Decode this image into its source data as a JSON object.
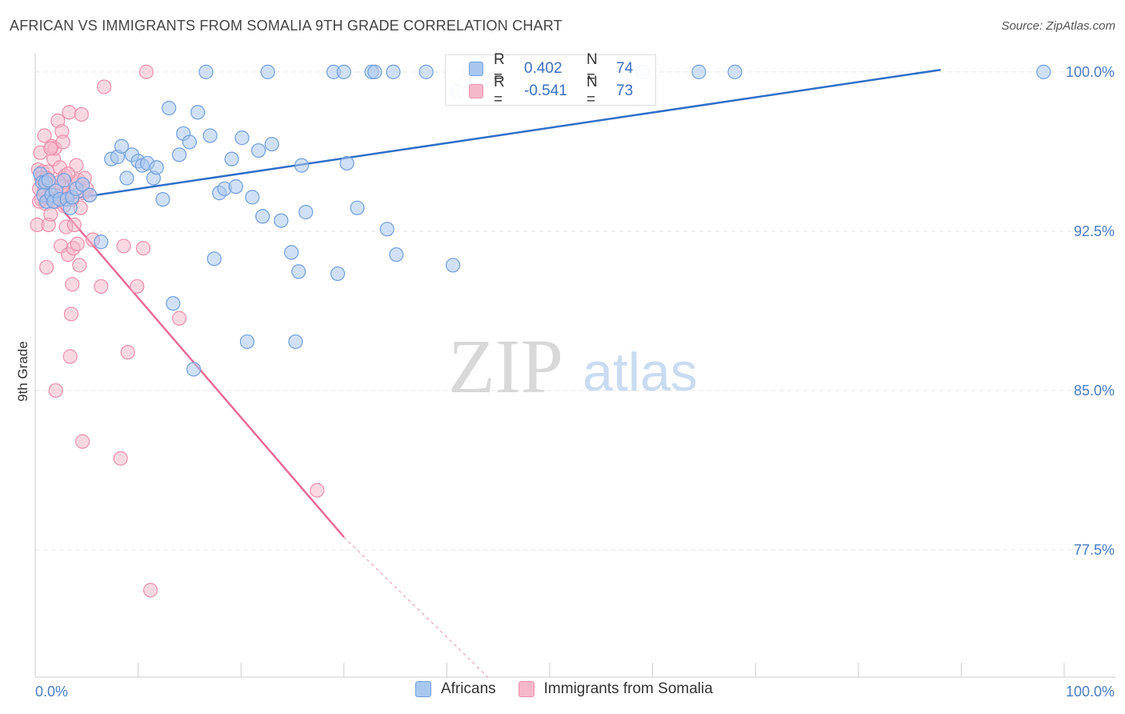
{
  "title": "AFRICAN VS IMMIGRANTS FROM SOMALIA 9TH GRADE CORRELATION CHART",
  "source": "Source: ZipAtlas.com",
  "watermark": {
    "zip": "ZIP",
    "atlas": "atlas"
  },
  "colors": {
    "africans_fill": "#a9c7ee",
    "africans_stroke": "#6f9fdc",
    "africans_line": "#2f6fc9",
    "somalia_fill": "#f5b8cb",
    "somalia_stroke": "#ec8fab",
    "somalia_line": "#e86a97",
    "tick_label": "#4a7cc2"
  },
  "stats": {
    "africans": {
      "r_label": "R =",
      "r_value": "0.402",
      "n_label": "N =",
      "n_value": "74"
    },
    "somalia": {
      "r_label": "R =",
      "r_value": "-0.541",
      "n_label": "N =",
      "n_value": "73"
    }
  },
  "legend": {
    "africans": "Africans",
    "somalia": "Immigrants from Somalia"
  },
  "chart_data": {
    "type": "scatter",
    "title": "AFRICAN VS IMMIGRANTS FROM SOMALIA 9TH GRADE CORRELATION CHART",
    "xlabel": "",
    "ylabel": "9th Grade",
    "xlim": [
      0,
      100
    ],
    "ylim": [
      71.5,
      100.9
    ],
    "x_tick_labels": [
      "0.0%",
      "100.0%"
    ],
    "y_ticks": [
      100.0,
      92.5,
      85.0,
      77.5
    ],
    "y_tick_labels": [
      "100.0%",
      "92.5%",
      "85.0%",
      "77.5%"
    ],
    "grid": true,
    "legend_position": "bottom-center",
    "series": [
      {
        "name": "Africans",
        "trend": {
          "x": [
            0.3,
            88.0
          ],
          "y": [
            93.8,
            100.1
          ]
        },
        "points": [
          [
            0.5,
            95.2
          ],
          [
            0.7,
            94.8
          ],
          [
            0.8,
            94.2
          ],
          [
            1.0,
            94.8
          ],
          [
            1.1,
            93.9
          ],
          [
            1.3,
            94.9
          ],
          [
            1.6,
            94.2
          ],
          [
            1.8,
            93.9
          ],
          [
            2.0,
            94.4
          ],
          [
            2.4,
            94.0
          ],
          [
            2.8,
            94.9
          ],
          [
            3.1,
            94.0
          ],
          [
            3.4,
            93.6
          ],
          [
            3.6,
            94.1
          ],
          [
            4.0,
            94.5
          ],
          [
            4.6,
            94.7
          ],
          [
            5.3,
            94.2
          ],
          [
            6.4,
            92.0
          ],
          [
            7.4,
            95.9
          ],
          [
            8.0,
            96.0
          ],
          [
            8.4,
            96.5
          ],
          [
            8.9,
            95.0
          ],
          [
            9.4,
            96.1
          ],
          [
            10.0,
            95.8
          ],
          [
            10.4,
            95.6
          ],
          [
            10.9,
            95.7
          ],
          [
            11.5,
            95.0
          ],
          [
            11.8,
            95.5
          ],
          [
            12.4,
            94.0
          ],
          [
            13.0,
            98.3
          ],
          [
            13.4,
            89.1
          ],
          [
            14.0,
            96.1
          ],
          [
            14.4,
            97.1
          ],
          [
            15.0,
            96.7
          ],
          [
            15.4,
            86.0
          ],
          [
            15.8,
            98.1
          ],
          [
            16.6,
            100.0
          ],
          [
            17.0,
            97.0
          ],
          [
            17.4,
            91.2
          ],
          [
            17.9,
            94.3
          ],
          [
            18.4,
            94.5
          ],
          [
            19.1,
            95.9
          ],
          [
            19.5,
            94.6
          ],
          [
            20.1,
            96.9
          ],
          [
            20.6,
            87.3
          ],
          [
            21.1,
            94.1
          ],
          [
            21.7,
            96.3
          ],
          [
            22.1,
            93.2
          ],
          [
            22.6,
            100.0
          ],
          [
            23.0,
            96.6
          ],
          [
            23.9,
            93.0
          ],
          [
            24.9,
            91.5
          ],
          [
            25.3,
            87.3
          ],
          [
            25.6,
            90.6
          ],
          [
            25.9,
            95.6
          ],
          [
            26.3,
            93.4
          ],
          [
            29.0,
            100.0
          ],
          [
            29.4,
            90.5
          ],
          [
            30.0,
            100.0
          ],
          [
            30.3,
            95.7
          ],
          [
            31.3,
            93.6
          ],
          [
            32.7,
            100.0
          ],
          [
            33.0,
            100.0
          ],
          [
            34.2,
            92.6
          ],
          [
            34.8,
            100.0
          ],
          [
            35.1,
            91.4
          ],
          [
            38.0,
            100.0
          ],
          [
            40.6,
            90.9
          ],
          [
            41.0,
            99.1
          ],
          [
            42.3,
            100.0
          ],
          [
            59.0,
            100.0
          ],
          [
            64.5,
            100.0
          ],
          [
            68.0,
            100.0
          ],
          [
            98.0,
            100.0
          ]
        ]
      },
      {
        "name": "Immigrants from Somalia",
        "trend": {
          "x": [
            0.0,
            30.0
          ],
          "y": [
            95.0,
            78.1
          ],
          "dashed_to": {
            "x": 44.0,
            "y": 71.5
          }
        },
        "points": [
          [
            0.2,
            92.8
          ],
          [
            0.3,
            95.4
          ],
          [
            0.4,
            94.5
          ],
          [
            0.5,
            96.2
          ],
          [
            0.6,
            94.0
          ],
          [
            0.7,
            95.3
          ],
          [
            0.8,
            94.9
          ],
          [
            0.9,
            97.0
          ],
          [
            1.0,
            93.8
          ],
          [
            1.1,
            90.8
          ],
          [
            1.2,
            95.3
          ],
          [
            1.3,
            92.8
          ],
          [
            1.4,
            94.8
          ],
          [
            1.5,
            93.3
          ],
          [
            1.6,
            96.5
          ],
          [
            1.7,
            94.2
          ],
          [
            1.8,
            95.9
          ],
          [
            1.9,
            96.4
          ],
          [
            2.0,
            85.0
          ],
          [
            2.1,
            93.9
          ],
          [
            2.2,
            97.7
          ],
          [
            2.3,
            94.1
          ],
          [
            2.4,
            95.5
          ],
          [
            2.5,
            91.8
          ],
          [
            2.6,
            97.2
          ],
          [
            2.7,
            96.7
          ],
          [
            2.8,
            94.3
          ],
          [
            2.9,
            95.1
          ],
          [
            3.0,
            92.7
          ],
          [
            3.1,
            94.2
          ],
          [
            3.2,
            91.4
          ],
          [
            3.3,
            98.1
          ],
          [
            3.4,
            86.6
          ],
          [
            3.5,
            88.6
          ],
          [
            3.6,
            90.0
          ],
          [
            3.7,
            91.7
          ],
          [
            3.8,
            92.8
          ],
          [
            3.9,
            94.8
          ],
          [
            4.0,
            95.6
          ],
          [
            4.1,
            91.9
          ],
          [
            4.2,
            94.9
          ],
          [
            4.3,
            90.9
          ],
          [
            4.4,
            93.6
          ],
          [
            4.5,
            98.0
          ],
          [
            4.6,
            82.6
          ],
          [
            4.7,
            94.3
          ],
          [
            5.0,
            94.5
          ],
          [
            5.3,
            94.2
          ],
          [
            5.6,
            92.1
          ],
          [
            6.4,
            89.9
          ],
          [
            6.7,
            99.3
          ],
          [
            8.3,
            81.8
          ],
          [
            8.6,
            91.8
          ],
          [
            9.0,
            86.8
          ],
          [
            9.9,
            89.9
          ],
          [
            10.5,
            91.7
          ],
          [
            10.8,
            100.0
          ],
          [
            11.2,
            75.6
          ],
          [
            14.0,
            88.4
          ],
          [
            27.4,
            80.3
          ],
          [
            0.6,
            95.0
          ],
          [
            1.2,
            94.1
          ],
          [
            1.9,
            93.9
          ],
          [
            2.6,
            94.6
          ],
          [
            3.2,
            95.2
          ],
          [
            0.4,
            93.9
          ],
          [
            1.5,
            96.4
          ],
          [
            2.8,
            93.7
          ],
          [
            0.9,
            94.4
          ],
          [
            3.6,
            94.0
          ],
          [
            4.8,
            95.0
          ],
          [
            1.1,
            95.0
          ],
          [
            2.3,
            94.8
          ]
        ]
      }
    ]
  }
}
